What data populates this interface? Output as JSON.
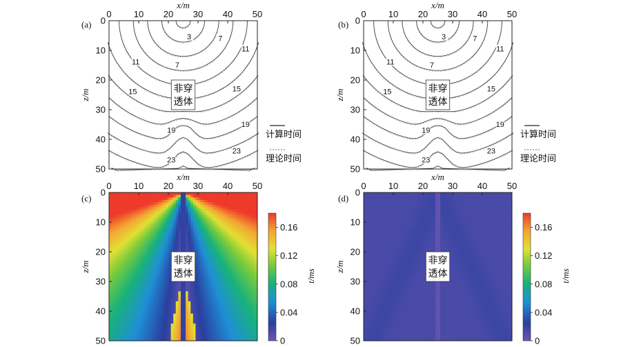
{
  "chart_data": [
    {
      "panel": "(a)",
      "type": "contour",
      "xlabel": "x/m",
      "ylabel": "z/m",
      "xlim": [
        0,
        50
      ],
      "ylim": [
        0,
        50
      ],
      "y_inverted": true,
      "xticks": [
        0,
        10,
        20,
        30,
        40,
        50
      ],
      "yticks": [
        0,
        10,
        20,
        30,
        40,
        50
      ],
      "source": [
        25,
        0
      ],
      "contour_levels": [
        1,
        3,
        5,
        7,
        9,
        11,
        13,
        15,
        17,
        19,
        21,
        23,
        25
      ],
      "contour_labels": [
        3,
        7,
        11,
        15,
        19,
        23
      ],
      "obstacle": {
        "label_line1": "非穿",
        "label_line2": "透体",
        "x": [
          21,
          29
        ],
        "z": [
          20,
          30
        ]
      },
      "legend": [
        {
          "name": "计算时间",
          "style": "solid"
        },
        {
          "name": "理论时间",
          "style": "dotted"
        }
      ]
    },
    {
      "panel": "(b)",
      "type": "contour",
      "xlabel": "x/m",
      "ylabel": "z/m",
      "xlim": [
        0,
        50
      ],
      "ylim": [
        0,
        50
      ],
      "y_inverted": true,
      "xticks": [
        0,
        10,
        20,
        30,
        40,
        50
      ],
      "yticks": [
        0,
        10,
        20,
        30,
        40,
        50
      ],
      "source": [
        25,
        0
      ],
      "contour_levels": [
        1,
        3,
        5,
        7,
        9,
        11,
        13,
        15,
        17,
        19,
        21,
        23,
        25
      ],
      "contour_labels": [
        3,
        7,
        11,
        15,
        19,
        23
      ],
      "obstacle": {
        "label_line1": "非穿",
        "label_line2": "透体",
        "x": [
          21,
          29
        ],
        "z": [
          20,
          30
        ]
      },
      "legend": [
        {
          "name": "计算时间",
          "style": "solid"
        },
        {
          "name": "理论时间",
          "style": "dotted"
        }
      ]
    },
    {
      "panel": "(c)",
      "type": "heatmap",
      "xlabel": "x/m",
      "ylabel": "z/m",
      "xlim": [
        0,
        50
      ],
      "ylim": [
        0,
        50
      ],
      "y_inverted": true,
      "xticks": [
        0,
        10,
        20,
        30,
        40,
        50
      ],
      "yticks": [
        0,
        10,
        20,
        30,
        40,
        50
      ],
      "obstacle": {
        "label_line1": "非穿",
        "label_line2": "透体",
        "x": [
          21,
          29
        ],
        "z": [
          20,
          30
        ]
      },
      "colorbar": {
        "label": "t/ms",
        "range": [
          0,
          0.18
        ],
        "ticks": [
          "0",
          "0.04",
          "0.08",
          "0.12",
          "0.16"
        ]
      }
    },
    {
      "panel": "(d)",
      "type": "heatmap",
      "xlabel": "x/m",
      "ylabel": "z/m",
      "xlim": [
        0,
        50
      ],
      "ylim": [
        0,
        50
      ],
      "y_inverted": true,
      "xticks": [
        0,
        10,
        20,
        30,
        40,
        50
      ],
      "yticks": [
        0,
        10,
        20,
        30,
        40,
        50
      ],
      "obstacle": {
        "label_line1": "非穿",
        "label_line2": "透体",
        "x": [
          21,
          29
        ],
        "z": [
          20,
          30
        ]
      },
      "colorbar": {
        "label": "t/ms",
        "range": [
          0,
          0.18
        ],
        "ticks": [
          "0",
          "0.04",
          "0.08",
          "0.12",
          "0.16"
        ]
      }
    }
  ],
  "colors": {
    "contour_line": "#444444",
    "ramp": [
      "#5b4fb5",
      "#2a3f9f",
      "#1f8fd6",
      "#18b27a",
      "#7ccc3a",
      "#e2e034",
      "#f4a432",
      "#ee3a2a"
    ]
  }
}
